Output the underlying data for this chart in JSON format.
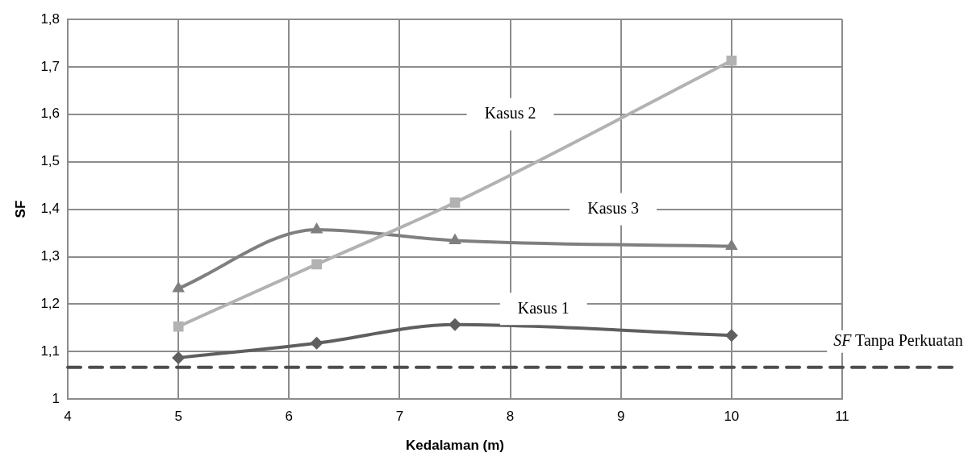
{
  "chart_data": {
    "type": "line",
    "xlabel": "Kedalaman (m)",
    "ylabel": "SF",
    "xlim": [
      4,
      11
    ],
    "xticks": [
      4,
      5,
      6,
      7,
      8,
      9,
      10,
      11
    ],
    "ylim": [
      1,
      1.8
    ],
    "yticks": [
      1,
      {
        "value": 1.1,
        "label": "1,1"
      },
      {
        "value": 1.2,
        "label": "1,2"
      },
      {
        "value": 1.3,
        "label": "1,3"
      },
      {
        "value": 1.4,
        "label": "1,4"
      },
      {
        "value": 1.5,
        "label": "1,5"
      },
      {
        "value": 1.6,
        "label": "1,6"
      },
      {
        "value": 1.7,
        "label": "1,7"
      },
      {
        "value": 1.8,
        "label": "1,8"
      }
    ],
    "grid": true,
    "legend": false,
    "series": [
      {
        "name": "Kasus 1",
        "color": "#5f5f5f",
        "marker": "diamond",
        "x": [
          5,
          6.25,
          7.5,
          10
        ],
        "values": [
          1.087,
          1.118,
          1.157,
          1.134
        ]
      },
      {
        "name": "Kasus 2",
        "color": "#b2b2b2",
        "marker": "square",
        "x": [
          5,
          6.25,
          7.5,
          10
        ],
        "values": [
          1.153,
          1.284,
          1.414,
          1.713
        ]
      },
      {
        "name": "Kasus 3",
        "color": "#7f7f7f",
        "marker": "triangle",
        "x": [
          5,
          6.25,
          7.5,
          10
        ],
        "values": [
          1.233,
          1.357,
          1.334,
          1.322
        ]
      }
    ],
    "ref_lines": [
      {
        "axis": "y",
        "value": 1.067,
        "label": "SF Tanpa Perkuatan",
        "color": "#4d4d4d",
        "line_style": "dashed"
      }
    ]
  }
}
